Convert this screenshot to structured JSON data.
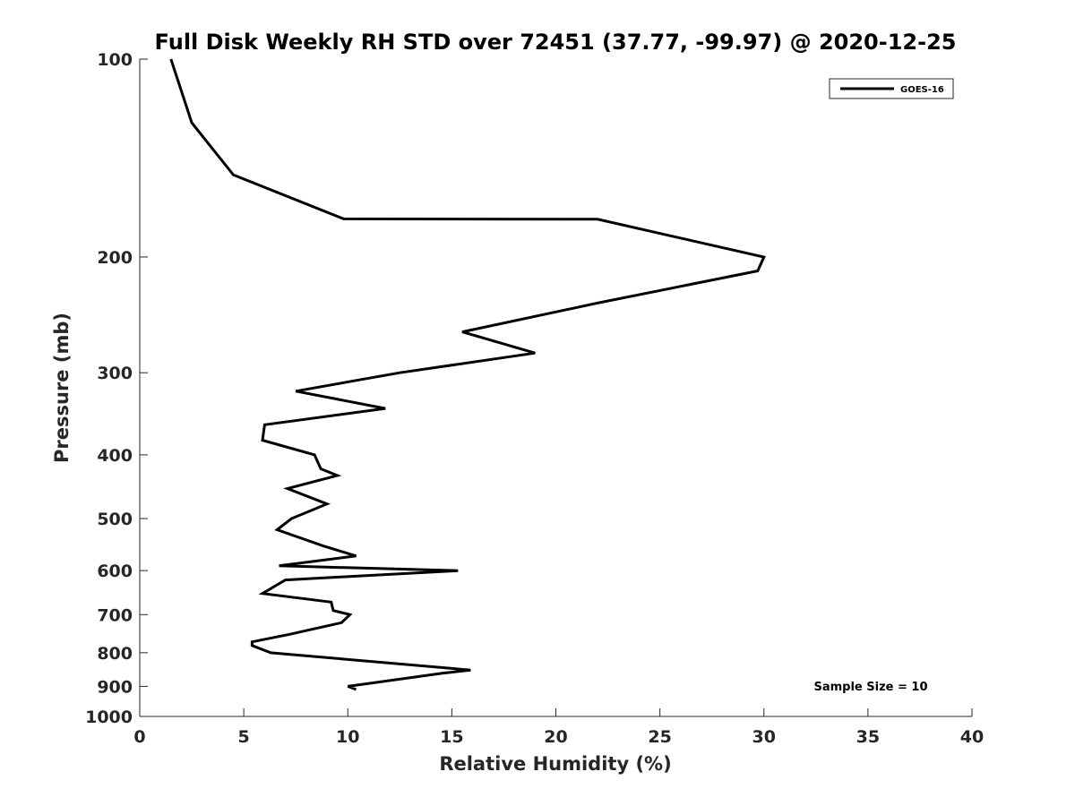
{
  "chart_data": {
    "type": "line",
    "title": "Full Disk Weekly RH STD over 72451 (37.77, -99.97) @ 2020-12-25",
    "xlabel": "Relative Humidity (%)",
    "ylabel": "Pressure (mb)",
    "xlim": [
      0,
      40
    ],
    "ylim": [
      100,
      1000
    ],
    "yscale": "log",
    "yreversed": true,
    "xticks": [
      0,
      5,
      10,
      15,
      20,
      25,
      30,
      35,
      40
    ],
    "xtick_labels": [
      "0",
      "5",
      "10",
      "15",
      "20",
      "25",
      "30",
      "35",
      "40"
    ],
    "yticks": [
      100,
      200,
      300,
      400,
      500,
      600,
      700,
      800,
      900,
      1000
    ],
    "ytick_labels": [
      "100",
      "200",
      "300",
      "400",
      "500",
      "600",
      "700",
      "800",
      "900",
      "1000"
    ],
    "legend": {
      "position": "top-right",
      "entries": [
        "GOES-16"
      ]
    },
    "annotation": "Sample Size = 10",
    "grid": false,
    "series": [
      {
        "name": "GOES-16",
        "color": "#000000",
        "points": [
          [
            1.5,
            100
          ],
          [
            2.5,
            125
          ],
          [
            4.5,
            150
          ],
          [
            9.8,
            175
          ],
          [
            22.0,
            175.2
          ],
          [
            30.0,
            200
          ],
          [
            29.7,
            210
          ],
          [
            22.0,
            235
          ],
          [
            15.5,
            260
          ],
          [
            19.0,
            280
          ],
          [
            12.5,
            300
          ],
          [
            7.5,
            320
          ],
          [
            11.8,
            340
          ],
          [
            6.0,
            360
          ],
          [
            5.9,
            380
          ],
          [
            8.4,
            400
          ],
          [
            8.7,
            420
          ],
          [
            9.5,
            430
          ],
          [
            7.1,
            450
          ],
          [
            9.0,
            475
          ],
          [
            7.3,
            500
          ],
          [
            6.6,
            520
          ],
          [
            8.8,
            550
          ],
          [
            10.4,
            570
          ],
          [
            6.7,
            590
          ],
          [
            15.3,
            600
          ],
          [
            7.0,
            620
          ],
          [
            5.9,
            650
          ],
          [
            9.2,
            670
          ],
          [
            9.3,
            690
          ],
          [
            10.1,
            700
          ],
          [
            9.7,
            720
          ],
          [
            7.2,
            750
          ],
          [
            5.4,
            770
          ],
          [
            5.4,
            780
          ],
          [
            6.3,
            800
          ],
          [
            15.9,
            850
          ],
          [
            14.5,
            860
          ],
          [
            10.0,
            900
          ],
          [
            10.4,
            910
          ]
        ]
      }
    ]
  }
}
